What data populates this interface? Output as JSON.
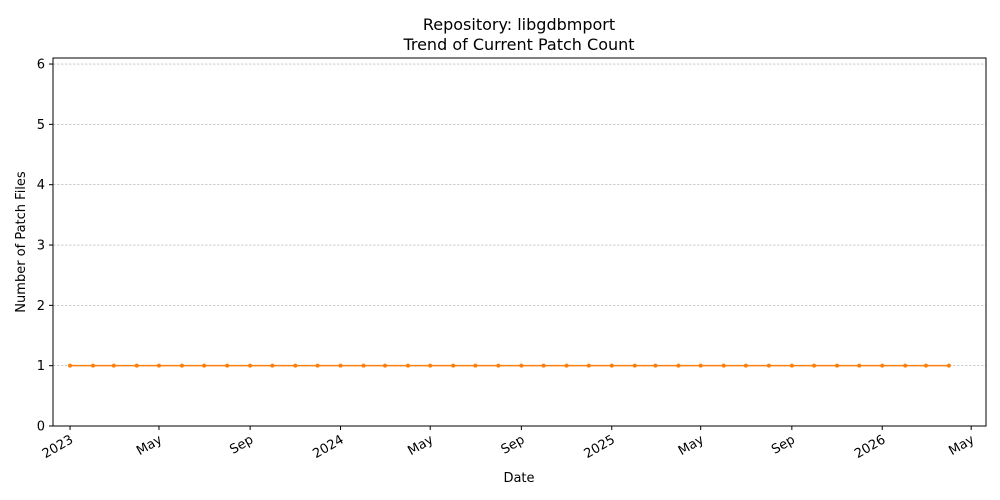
{
  "chart_data": {
    "type": "line",
    "title": "Repository: libgdbmport",
    "subtitle": "Trend of Current Patch Count",
    "xlabel": "Date",
    "ylabel": "Number of Patch Files",
    "ylim": [
      0,
      6.1
    ],
    "xlim": [
      "2022-12-09",
      "2026-05-21"
    ],
    "y_ticks": [
      0,
      1,
      2,
      3,
      4,
      5,
      6
    ],
    "x_ticks": [
      {
        "date": "2023-01-01",
        "label": "2023"
      },
      {
        "date": "2023-05-01",
        "label": "May"
      },
      {
        "date": "2023-09-01",
        "label": "Sep"
      },
      {
        "date": "2024-01-01",
        "label": "2024"
      },
      {
        "date": "2024-05-01",
        "label": "May"
      },
      {
        "date": "2024-09-01",
        "label": "Sep"
      },
      {
        "date": "2025-01-01",
        "label": "2025"
      },
      {
        "date": "2025-05-01",
        "label": "May"
      },
      {
        "date": "2025-09-01",
        "label": "Sep"
      },
      {
        "date": "2026-01-01",
        "label": "2026"
      },
      {
        "date": "2026-05-01",
        "label": "May"
      }
    ],
    "grid": "horizontal",
    "series": [
      {
        "color": "#ff7f0e",
        "x": [
          "2023-01-01",
          "2023-02-01",
          "2023-03-01",
          "2023-04-01",
          "2023-05-01",
          "2023-06-01",
          "2023-07-01",
          "2023-08-01",
          "2023-09-01",
          "2023-10-01",
          "2023-11-01",
          "2023-12-01",
          "2024-01-01",
          "2024-02-01",
          "2024-03-01",
          "2024-04-01",
          "2024-05-01",
          "2024-06-01",
          "2024-07-01",
          "2024-08-01",
          "2024-09-01",
          "2024-10-01",
          "2024-11-01",
          "2024-12-01",
          "2025-01-01",
          "2025-02-01",
          "2025-03-01",
          "2025-04-01",
          "2025-05-01",
          "2025-06-01",
          "2025-07-01",
          "2025-08-01",
          "2025-09-01",
          "2025-10-01",
          "2025-11-01",
          "2025-12-01",
          "2026-01-01",
          "2026-02-01",
          "2026-03-01",
          "2026-04-01"
        ],
        "values": [
          1,
          1,
          1,
          1,
          1,
          1,
          1,
          1,
          1,
          1,
          1,
          1,
          1,
          1,
          1,
          1,
          1,
          1,
          1,
          1,
          1,
          1,
          1,
          1,
          1,
          1,
          1,
          1,
          1,
          1,
          1,
          1,
          1,
          1,
          1,
          1,
          1,
          1,
          1,
          1
        ]
      }
    ]
  }
}
